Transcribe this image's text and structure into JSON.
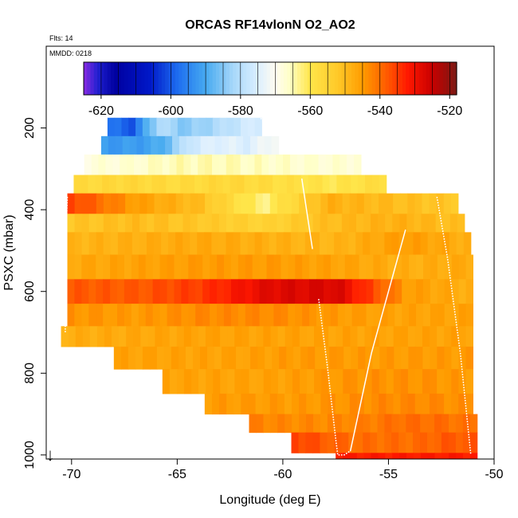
{
  "chart_data": {
    "type": "heatmap",
    "title": "ORCAS RF14vlonN O2_AO2",
    "annotations": {
      "flights": "Flts: 14",
      "date": "MMDD: 0218"
    },
    "xlabel": "Longitude (deg E)",
    "ylabel": "PSXC (mbar)",
    "xlim": [
      -71.2,
      -50
    ],
    "ylim": [
      1010,
      0
    ],
    "x_ticks": [
      -70,
      -65,
      -60,
      -55,
      -50
    ],
    "x_tick_labels": [
      "-70",
      "-65",
      "-60",
      "-55",
      "-50"
    ],
    "y_ticks": [
      200,
      400,
      600,
      800,
      1000
    ],
    "y_tick_labels": [
      "200",
      "400",
      "600",
      "800",
      "1000"
    ],
    "colorbar": {
      "range": [
        -625,
        -518
      ],
      "ticks": [
        -620,
        -600,
        -580,
        -560,
        -540,
        -520
      ],
      "tick_labels": [
        "-620",
        "-600",
        "-580",
        "-560",
        "-540",
        "-520"
      ],
      "divisions": [
        -625,
        -620,
        -615,
        -610,
        -605,
        -600,
        -595,
        -590,
        -585,
        -580,
        -575,
        -570,
        -565,
        -560,
        -555,
        -550,
        -545,
        -540,
        -535,
        -530,
        -525,
        -520,
        -518
      ],
      "stops": [
        {
          "v": -625,
          "c": "#8a2be2"
        },
        {
          "v": -621,
          "c": "#2020d0"
        },
        {
          "v": -616,
          "c": "#0000a0"
        },
        {
          "v": -606,
          "c": "#0018c8"
        },
        {
          "v": -598,
          "c": "#1e6ef0"
        },
        {
          "v": -590,
          "c": "#46aaf0"
        },
        {
          "v": -582,
          "c": "#a8d8fa"
        },
        {
          "v": -575,
          "c": "#dcefff"
        },
        {
          "v": -570,
          "c": "#fffcf0"
        },
        {
          "v": -566,
          "c": "#ffffc8"
        },
        {
          "v": -560,
          "c": "#ffe64a"
        },
        {
          "v": -552,
          "c": "#ffc828"
        },
        {
          "v": -545,
          "c": "#ff9c00"
        },
        {
          "v": -538,
          "c": "#ff5a00"
        },
        {
          "v": -532,
          "c": "#ff1800"
        },
        {
          "v": -525,
          "c": "#c80000"
        },
        {
          "v": -518,
          "c": "#7a1a14"
        }
      ]
    },
    "rows": [
      {
        "p": [
          175,
          220
        ],
        "lon": [
          -68.3,
          -61
        ],
        "vals": [
          -597,
          -600,
          -580,
          -585,
          -582,
          -578,
          -575
        ]
      },
      {
        "p": [
          220,
          265
        ],
        "lon": [
          -68.6,
          -60.2
        ],
        "vals": [
          -592,
          -592,
          -590,
          -577,
          -574,
          -575,
          -570
        ]
      },
      {
        "p": [
          265,
          315
        ],
        "lon": [
          -69.4,
          -56.3
        ],
        "vals": [
          -568,
          -567,
          -565,
          -565,
          -566,
          -567,
          -567
        ]
      },
      {
        "p": [
          315,
          360
        ],
        "lon": [
          -69.9,
          -55.1
        ],
        "vals": [
          -557,
          -556,
          -557,
          -556,
          -558,
          -560,
          -557
        ]
      },
      {
        "p": [
          360,
          410
        ],
        "lon": [
          -70.2,
          -51.7
        ],
        "vals": [
          -535,
          -545,
          -550,
          -563,
          -548,
          -550,
          -552
        ]
      },
      {
        "p": [
          410,
          455
        ],
        "lon": [
          -70.2,
          -51.4
        ],
        "vals": [
          -552,
          -550,
          -552,
          -555,
          -550,
          -548,
          -551
        ]
      },
      {
        "p": [
          455,
          510
        ],
        "lon": [
          -70.2,
          -51.1
        ],
        "vals": [
          -549,
          -548,
          -547,
          -548,
          -549,
          -545,
          -548
        ]
      },
      {
        "p": [
          510,
          570
        ],
        "lon": [
          -70.2,
          -51
        ],
        "vals": [
          -547,
          -546,
          -545,
          -545,
          -546,
          -548,
          -547
        ]
      },
      {
        "p": [
          570,
          630
        ],
        "lon": [
          -70.2,
          -51
        ],
        "vals": [
          -538,
          -538,
          -535,
          -528,
          -527,
          -545,
          -548
        ]
      },
      {
        "p": [
          630,
          685
        ],
        "lon": [
          -70.2,
          -51
        ],
        "vals": [
          -544,
          -545,
          -543,
          -543,
          -545,
          -546,
          -546
        ]
      },
      {
        "p": [
          685,
          735
        ],
        "lon": [
          -70.5,
          -51
        ],
        "vals": [
          -548,
          -547,
          -546,
          -546,
          -546,
          -546,
          -546
        ]
      },
      {
        "p": [
          735,
          790
        ],
        "lon": [
          -68,
          -51
        ],
        "vals": [
          -546,
          -546,
          -546,
          -545,
          -545,
          -545,
          -545
        ]
      },
      {
        "p": [
          790,
          850
        ],
        "lon": [
          -65.7,
          -51
        ],
        "vals": [
          -546,
          -546,
          -546,
          -545,
          -544,
          -544,
          -545
        ]
      },
      {
        "p": [
          850,
          900
        ],
        "lon": [
          -63.7,
          -51
        ],
        "vals": [
          -545,
          -545,
          -545,
          -544,
          -543,
          -543,
          -544
        ]
      },
      {
        "p": [
          900,
          945
        ],
        "lon": [
          -61.6,
          -50.8
        ],
        "vals": [
          -542,
          -543,
          -543,
          -542,
          -540,
          -540,
          -541
        ]
      },
      {
        "p": [
          945,
          995
        ],
        "lon": [
          -59.6,
          -50.8
        ],
        "vals": [
          -535,
          -538,
          -540,
          -540,
          -540,
          -538,
          -538
        ]
      },
      {
        "p": [
          995,
          1010
        ],
        "lon": [
          -57.5,
          -50.8
        ],
        "vals": [
          -532,
          -532,
          -532,
          -532,
          -532,
          -532,
          -532
        ]
      }
    ],
    "flight_tracks": [
      {
        "style": "dots",
        "points": [
          [
            -70.2,
            370
          ],
          [
            -70.3,
            500
          ],
          [
            -70.3,
            700
          ]
        ]
      },
      {
        "style": "line",
        "points": [
          [
            -59.1,
            325
          ],
          [
            -58.6,
            495
          ]
        ]
      },
      {
        "style": "dots",
        "points": [
          [
            -58.3,
            620
          ],
          [
            -57.9,
            780
          ],
          [
            -57.5,
            960
          ],
          [
            -57.4,
            1000
          ],
          [
            -57.1,
            1000
          ],
          [
            -56.8,
            990
          ]
        ]
      },
      {
        "style": "line",
        "points": [
          [
            -56.8,
            990
          ],
          [
            -55.8,
            750
          ],
          [
            -54.2,
            450
          ]
        ]
      },
      {
        "style": "dots",
        "points": [
          [
            -52.7,
            370
          ],
          [
            -52.2,
            520
          ],
          [
            -51.6,
            750
          ],
          [
            -51.1,
            1000
          ]
        ]
      },
      {
        "style": "dashes",
        "points": [
          [
            -68,
            172
          ],
          [
            -63,
            172
          ]
        ]
      },
      {
        "style": "dots",
        "points": [
          [
            -61.1,
            172
          ],
          [
            -60.7,
            200
          ]
        ]
      }
    ],
    "north_arrow": "↓"
  }
}
